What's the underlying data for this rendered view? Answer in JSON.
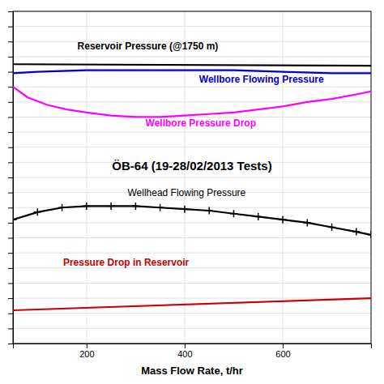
{
  "chart_data": {
    "type": "line",
    "x_label": "Mass Flow Rate, t/hr",
    "annotations": [
      "ÖB-64 (19-28/02/2013 Tests)"
    ],
    "xlim": [
      50,
      780
    ],
    "ylim": [
      0,
      220
    ],
    "xticks": [
      200,
      400,
      600
    ],
    "yticks": [
      0,
      10,
      20,
      30,
      40,
      50,
      60,
      70,
      80,
      90,
      100,
      110,
      120,
      130,
      140,
      150,
      160,
      170,
      180,
      190,
      200,
      210,
      220
    ],
    "tick_labels": "x",
    "grid": true,
    "series": [
      {
        "name": "Reservoir Pressure (@1750 m)",
        "color": "#000000",
        "x": [
          50,
          780
        ],
        "values": [
          185,
          184
        ]
      },
      {
        "name": "Wellbore Flowing Pressure",
        "color": "#0000cc",
        "x": [
          50,
          100,
          200,
          300,
          400,
          500,
          600,
          700,
          780
        ],
        "values": [
          179,
          180,
          181,
          181,
          181,
          181,
          180,
          179,
          179
        ]
      },
      {
        "name": "Wellbore Pressure Drop",
        "color": "#ff00ff",
        "x": [
          50,
          80,
          120,
          160,
          200,
          250,
          300,
          350,
          400,
          450,
          500,
          550,
          600,
          650,
          700,
          750,
          780
        ],
        "values": [
          170,
          163,
          158,
          155,
          153,
          151,
          150,
          150,
          151,
          152,
          153,
          155,
          157,
          160,
          162,
          165,
          167
        ]
      },
      {
        "name": "Wellhead Flowing Pressure",
        "color": "#000000",
        "marker": "plus",
        "x": [
          50,
          100,
          150,
          200,
          250,
          300,
          350,
          400,
          450,
          500,
          550,
          600,
          650,
          700,
          750,
          780
        ],
        "values": [
          82,
          87,
          90,
          91,
          91,
          91,
          90,
          89,
          88,
          86,
          84,
          82,
          80,
          77,
          74,
          72
        ]
      },
      {
        "name": "Pressure Drop in Reservoir",
        "color": "#cc0000",
        "x": [
          50,
          780
        ],
        "values": [
          22,
          30
        ]
      }
    ]
  }
}
